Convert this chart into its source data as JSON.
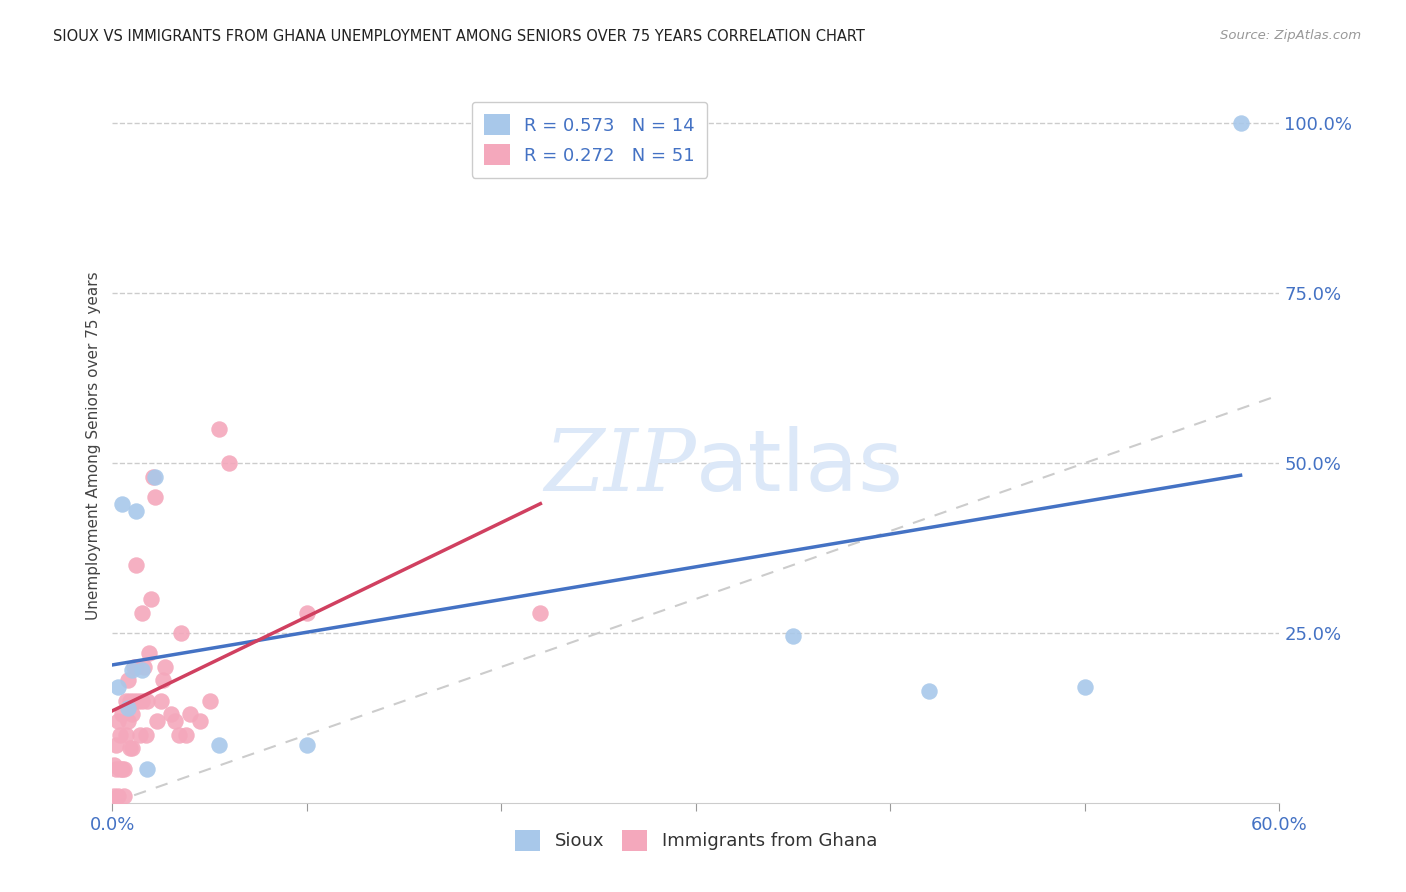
{
  "title": "SIOUX VS IMMIGRANTS FROM GHANA UNEMPLOYMENT AMONG SENIORS OVER 75 YEARS CORRELATION CHART",
  "source": "Source: ZipAtlas.com",
  "ylabel": "Unemployment Among Seniors over 75 years",
  "xlim": [
    0.0,
    0.6
  ],
  "ylim": [
    0.0,
    1.05
  ],
  "xticks": [
    0.0,
    0.1,
    0.2,
    0.3,
    0.4,
    0.5,
    0.6
  ],
  "xticklabels": [
    "0.0%",
    "",
    "",
    "",
    "",
    "",
    "60.0%"
  ],
  "ytick_vals": [
    0.0,
    0.25,
    0.5,
    0.75,
    1.0
  ],
  "yticklabels": [
    "",
    "25.0%",
    "50.0%",
    "75.0%",
    "100.0%"
  ],
  "sioux_color": "#a8c8ea",
  "ghana_color": "#f4a8bc",
  "sioux_line_color": "#4472c4",
  "ghana_line_color": "#d04060",
  "ref_line_color": "#cccccc",
  "axis_color": "#4472c4",
  "sioux_R": 0.573,
  "sioux_N": 14,
  "ghana_R": 0.272,
  "ghana_N": 51,
  "watermark_zip": "ZIP",
  "watermark_atlas": "atlas",
  "watermark_color": "#dce8f8",
  "background_color": "#ffffff",
  "sioux_x": [
    0.003,
    0.005,
    0.008,
    0.01,
    0.012,
    0.015,
    0.018,
    0.022,
    0.055,
    0.1,
    0.35,
    0.42,
    0.5,
    0.58
  ],
  "sioux_y": [
    0.17,
    0.44,
    0.14,
    0.195,
    0.43,
    0.195,
    0.05,
    0.48,
    0.085,
    0.085,
    0.245,
    0.165,
    0.17,
    1.0
  ],
  "ghana_x": [
    0.001,
    0.001,
    0.002,
    0.002,
    0.003,
    0.003,
    0.004,
    0.004,
    0.005,
    0.005,
    0.006,
    0.006,
    0.007,
    0.007,
    0.008,
    0.008,
    0.009,
    0.009,
    0.01,
    0.01,
    0.011,
    0.011,
    0.012,
    0.012,
    0.013,
    0.014,
    0.015,
    0.015,
    0.016,
    0.017,
    0.018,
    0.019,
    0.02,
    0.021,
    0.022,
    0.023,
    0.025,
    0.026,
    0.027,
    0.03,
    0.032,
    0.034,
    0.035,
    0.038,
    0.04,
    0.045,
    0.05,
    0.055,
    0.06,
    0.1,
    0.22
  ],
  "ghana_y": [
    0.055,
    0.01,
    0.085,
    0.05,
    0.01,
    0.12,
    0.1,
    0.05,
    0.13,
    0.05,
    0.05,
    0.01,
    0.15,
    0.1,
    0.18,
    0.12,
    0.08,
    0.15,
    0.13,
    0.08,
    0.2,
    0.15,
    0.35,
    0.2,
    0.15,
    0.1,
    0.28,
    0.15,
    0.2,
    0.1,
    0.15,
    0.22,
    0.3,
    0.48,
    0.45,
    0.12,
    0.15,
    0.18,
    0.2,
    0.13,
    0.12,
    0.1,
    0.25,
    0.1,
    0.13,
    0.12,
    0.15,
    0.55,
    0.5,
    0.28,
    0.28
  ]
}
